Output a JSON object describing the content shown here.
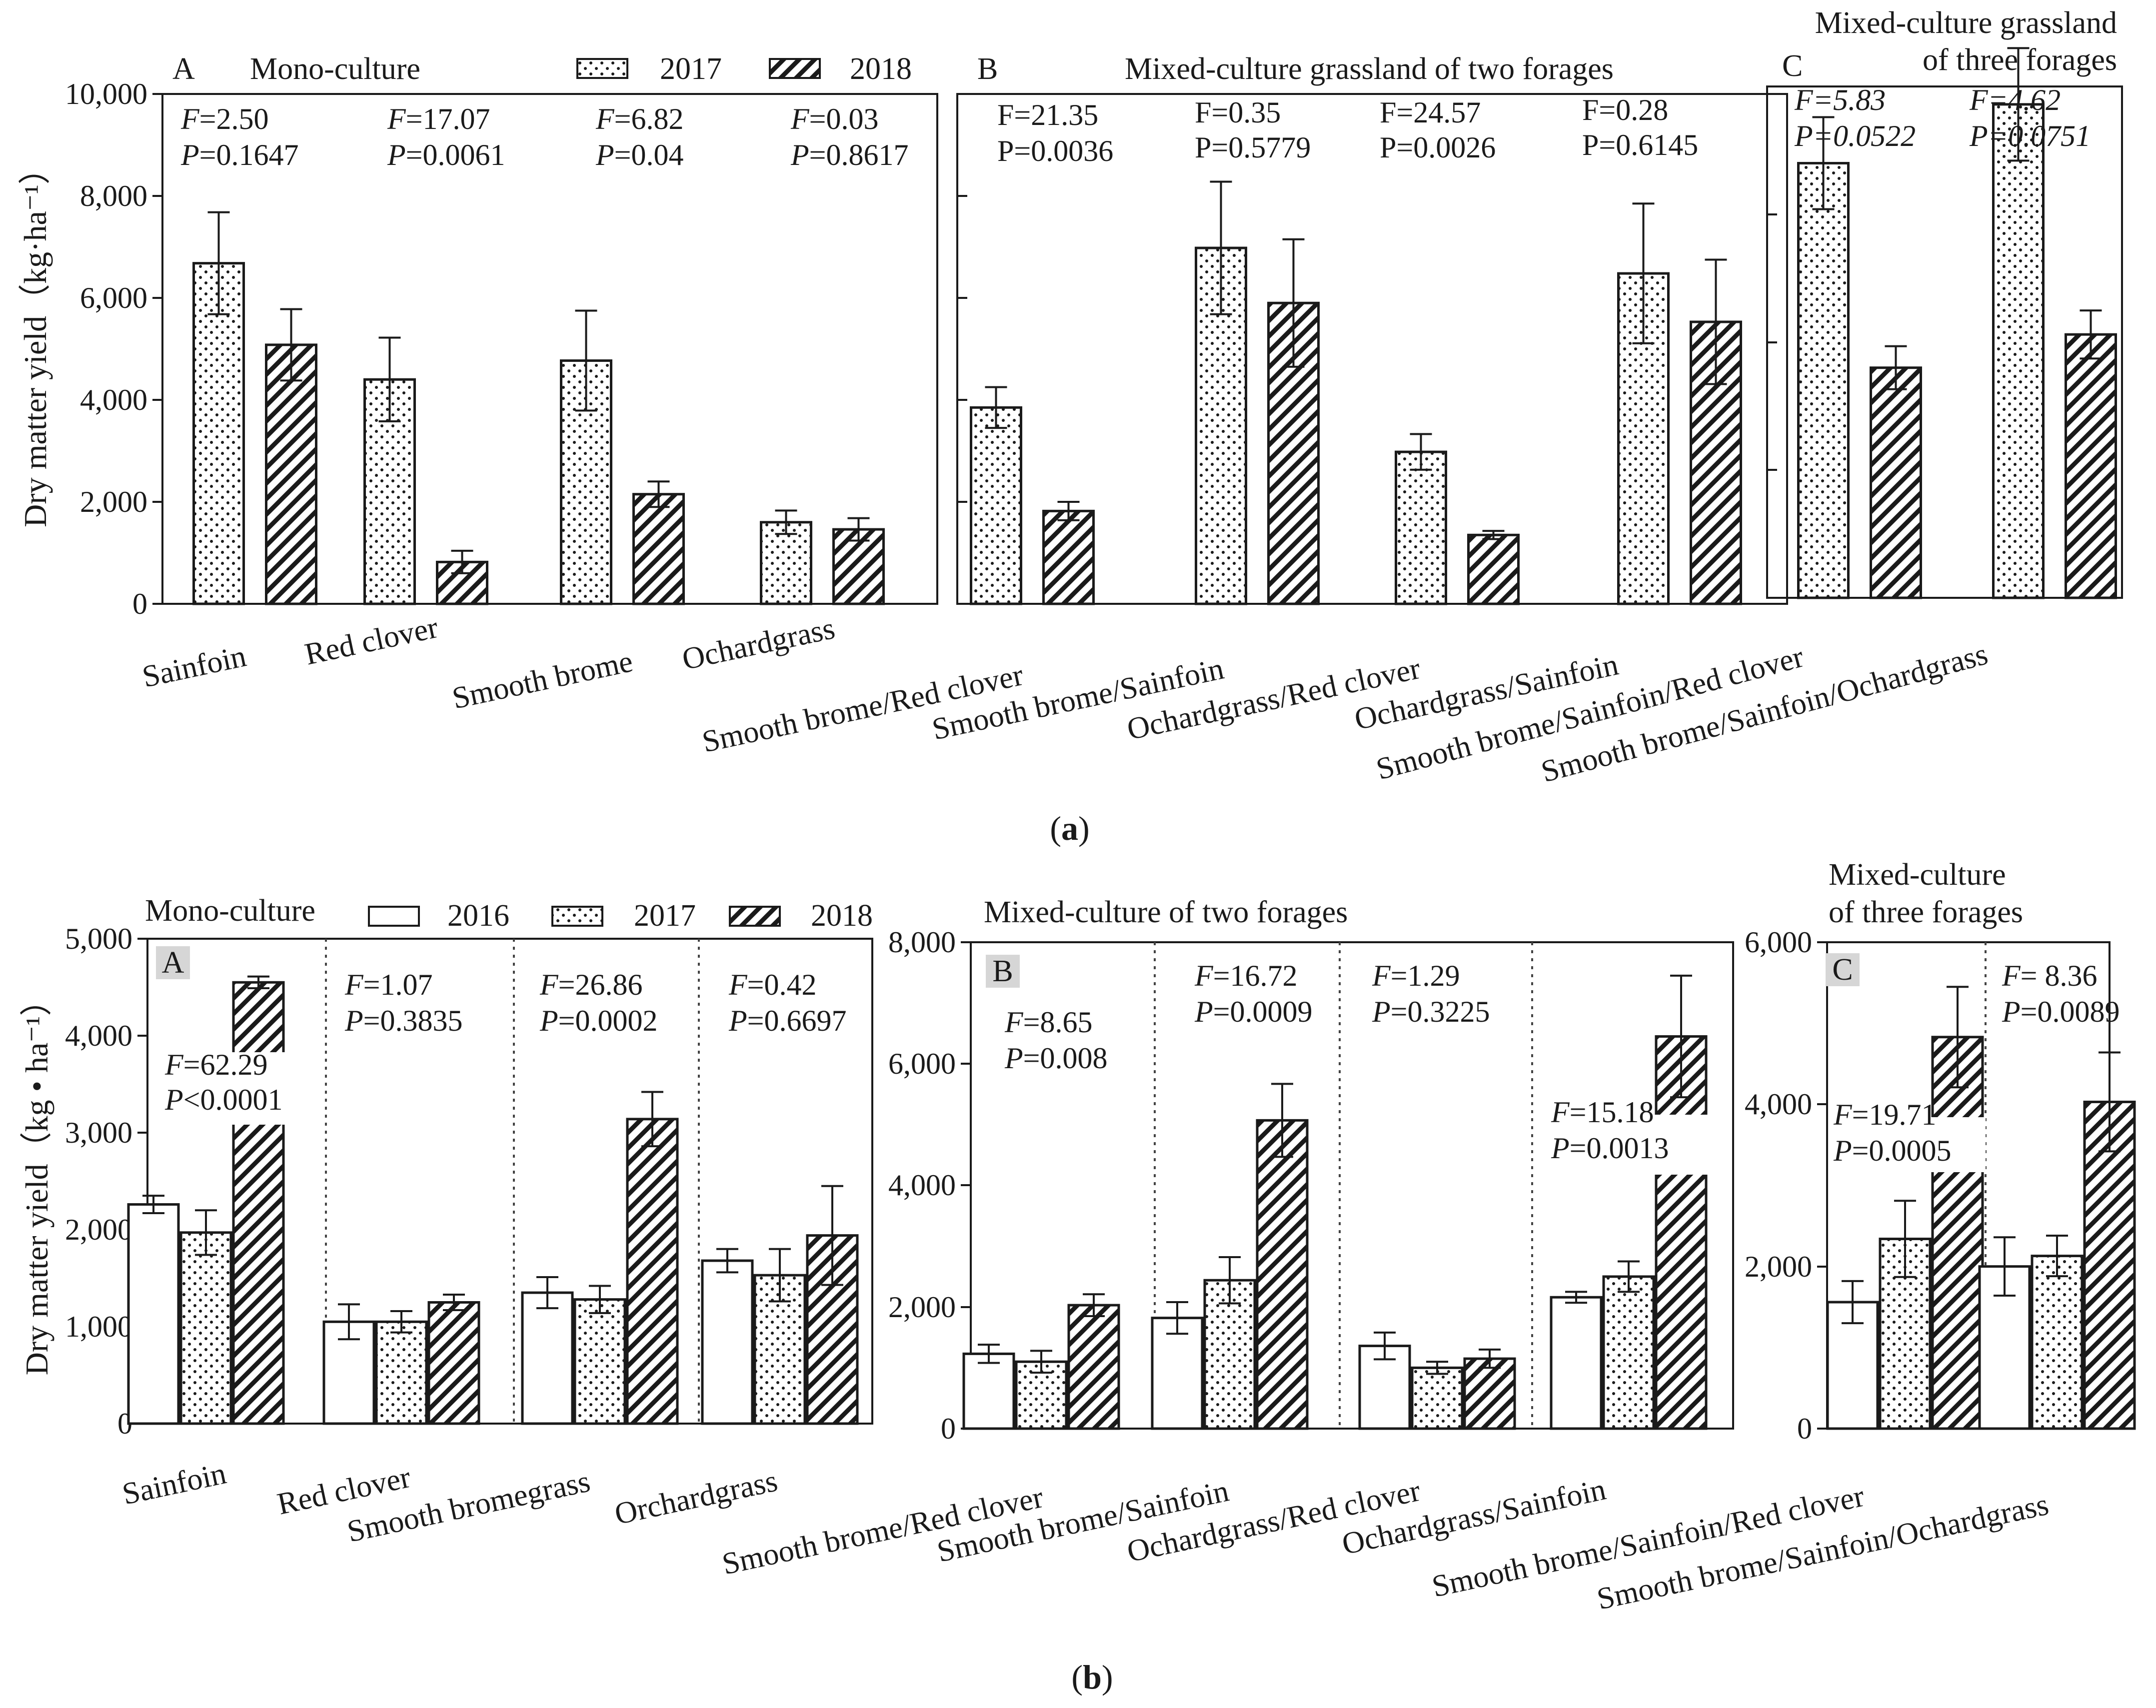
{
  "colors": {
    "ink": "#1a1a1a",
    "background": "#ffffff"
  },
  "captions": {
    "a": "a",
    "b": "b"
  },
  "chart_data": [
    {
      "type": "bar",
      "figure": "a",
      "ylabel": "Dry matter yield（kg·ha⁻¹）",
      "legend": [
        "2017",
        "2018"
      ],
      "panels": [
        {
          "id": "A",
          "letter": "A",
          "title": "Mono-culture",
          "ylim": [
            0,
            10000
          ],
          "yticks": [
            0,
            2000,
            4000,
            6000,
            8000,
            10000
          ],
          "ytick_labels": [
            "0",
            "2,000",
            "4,000",
            "6,000",
            "8,000",
            "10,000"
          ],
          "categories": [
            "Sainfoin",
            "Red clover",
            "Smooth brome",
            "Ochardgrass"
          ],
          "series": [
            {
              "name": "2017",
              "pattern": "dots",
              "values": [
                6680,
                4400,
                4770,
                1600
              ],
              "errors": [
                1000,
                820,
                980,
                230
              ]
            },
            {
              "name": "2018",
              "pattern": "hatch",
              "values": [
                5080,
                820,
                2150,
                1460
              ],
              "errors": [
                700,
                220,
                250,
                220
              ]
            }
          ],
          "stats": [
            {
              "F": "=2.50",
              "P": "=0.1647"
            },
            {
              "F": "=17.07",
              "P": "=0.0061"
            },
            {
              "F": "=6.82",
              "P": "=0.04"
            },
            {
              "F": "=0.03",
              "P": "=0.8617"
            }
          ]
        },
        {
          "id": "B",
          "letter": "B",
          "title": "Mixed-culture grassland of two forages",
          "ylim": [
            0,
            10000
          ],
          "yticks": [
            0,
            2000,
            4000,
            6000,
            8000,
            10000
          ],
          "categories": [
            "Smooth brome/Red clover",
            "Smooth brome/Sainfoin",
            "Ochardgrass/Red clover",
            "Ochardgrass/Sainfoin"
          ],
          "series": [
            {
              "name": "2017",
              "pattern": "dots",
              "values": [
                3850,
                6980,
                2980,
                6480
              ],
              "errors": [
                400,
                1300,
                350,
                1370
              ]
            },
            {
              "name": "2018",
              "pattern": "hatch",
              "values": [
                1820,
                5900,
                1350,
                5530
              ],
              "errors": [
                180,
                1250,
                80,
                1220
              ]
            }
          ],
          "stats": [
            {
              "F": "F=21.35",
              "P": "P=0.0036"
            },
            {
              "F": "F=0.35",
              "P": "P=0.5779"
            },
            {
              "F": "F=24.57",
              "P": "P=0.0026"
            },
            {
              "F": "F=0.28",
              "P": "P=0.6145"
            }
          ]
        },
        {
          "id": "C",
          "letter": "C",
          "title": [
            "Mixed-culture grassland",
            "of three forages"
          ],
          "ylim": [
            0,
            10000
          ],
          "yticks": [
            0,
            2000,
            4000,
            6000,
            8000,
            10000
          ],
          "categories": [
            "Smooth brome/Sainfoin/Red clover",
            "Smooth brome/Sainfoin/Ochardgrass"
          ],
          "series": [
            {
              "name": "2017",
              "pattern": "dots",
              "values": [
                8500,
                9650
              ],
              "errors": [
                900,
                1100
              ]
            },
            {
              "name": "2018",
              "pattern": "hatch",
              "values": [
                4500,
                5150
              ],
              "errors": [
                420,
                470
              ]
            }
          ],
          "stats": [
            {
              "F": "=5.83",
              "P": "=0.0522"
            },
            {
              "F": "=4.62",
              "P": "=0.0751"
            }
          ]
        }
      ]
    },
    {
      "type": "bar",
      "figure": "b",
      "ylabel": "Dry matter yield（kg • ha⁻¹）",
      "legend": [
        "2016",
        "2017",
        "2018"
      ],
      "panels": [
        {
          "id": "A",
          "letter": "A",
          "title": "Mono-culture",
          "ylim": [
            0,
            5000
          ],
          "yticks": [
            0,
            1000,
            2000,
            3000,
            4000,
            5000
          ],
          "ytick_labels": [
            "0",
            "1,000",
            "2,000",
            "3,000",
            "4,000",
            "5,000"
          ],
          "categories": [
            "Sainfoin",
            "Red clover",
            "Smooth bromegrass",
            "Orchardgrass"
          ],
          "series": [
            {
              "name": "2016",
              "pattern": "open",
              "values": [
                2260,
                1050,
                1350,
                1680
              ],
              "errors": [
                90,
                180,
                160,
                120
              ]
            },
            {
              "name": "2017",
              "pattern": "dots",
              "values": [
                1970,
                1050,
                1280,
                1530
              ],
              "errors": [
                230,
                110,
                140,
                270
              ]
            },
            {
              "name": "2018",
              "pattern": "hatch",
              "values": [
                4550,
                1250,
                3140,
                1940
              ],
              "errors": [
                60,
                80,
                280,
                510
              ]
            }
          ],
          "stats": [
            {
              "F": "=62.29",
              "P": "<0.0001"
            },
            {
              "F": "=1.07",
              "P": "=0.3835"
            },
            {
              "F": "=26.86",
              "P": "=0.0002"
            },
            {
              "F": "=0.42",
              "P": "=0.6697"
            }
          ]
        },
        {
          "id": "B",
          "letter": "B",
          "title": "Mixed-culture of two forages",
          "ylim": [
            0,
            8000
          ],
          "yticks": [
            0,
            2000,
            4000,
            6000,
            8000
          ],
          "ytick_labels": [
            "0",
            "2,000",
            "4,000",
            "6,000",
            "8,000"
          ],
          "categories": [
            "Smooth brome/Red clover",
            "Smooth brome/Sainfoin",
            "Ochardgrass/Red clover",
            "Ochardgrass/Sainfoin"
          ],
          "series": [
            {
              "name": "2016",
              "pattern": "open",
              "values": [
                1230,
                1820,
                1360,
                2160
              ],
              "errors": [
                150,
                260,
                220,
                90
              ]
            },
            {
              "name": "2017",
              "pattern": "dots",
              "values": [
                1100,
                2440,
                1000,
                2500
              ],
              "errors": [
                180,
                380,
                100,
                250
              ]
            },
            {
              "name": "2018",
              "pattern": "hatch",
              "values": [
                2030,
                5070,
                1150,
                6450
              ],
              "errors": [
                180,
                600,
                150,
                1000
              ]
            }
          ],
          "stats": [
            {
              "F": "=8.65",
              "P": "=0.008"
            },
            {
              "F": "=16.72",
              "P": "=0.0009"
            },
            {
              "F": "=1.29",
              "P": "=0.3225"
            },
            {
              "F": "=15.18",
              "P": "=0.0013"
            }
          ]
        },
        {
          "id": "C",
          "letter": "C",
          "title": [
            "Mixed-culture",
            "of three forages"
          ],
          "ylim": [
            0,
            6000
          ],
          "yticks": [
            0,
            2000,
            4000,
            6000
          ],
          "ytick_labels": [
            "0",
            "2,000",
            "4,000",
            "6,000"
          ],
          "categories": [
            "Smooth brome/Sainfoin/Red clover",
            "Smooth brome/Sainfoin/Ochardgrass"
          ],
          "series": [
            {
              "name": "2016",
              "pattern": "open",
              "values": [
                1560,
                2000
              ],
              "errors": [
                260,
                360
              ]
            },
            {
              "name": "2017",
              "pattern": "dots",
              "values": [
                2340,
                2130
              ],
              "errors": [
                470,
                250
              ]
            },
            {
              "name": "2018",
              "pattern": "hatch",
              "values": [
                4830,
                4030
              ],
              "errors": [
                620,
                610
              ]
            }
          ],
          "stats": [
            {
              "F": "=19.71",
              "P": "=0.0005"
            },
            {
              "F": "= 8.36",
              "P": "=0.0089"
            }
          ]
        }
      ]
    }
  ]
}
